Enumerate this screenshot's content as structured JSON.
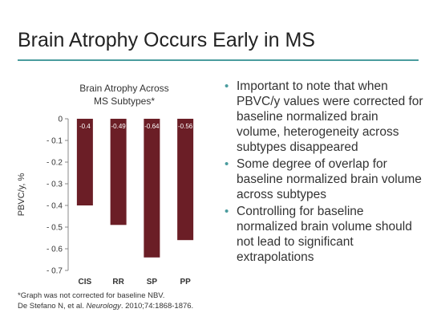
{
  "slide": {
    "title": "Brain Atrophy Occurs Early in MS",
    "accent_color": "#4a9c9e"
  },
  "bullets": [
    "Important to note that when PBVC/y values were corrected for baseline normalized brain volume, heterogeneity across subtypes disappeared",
    "Some degree of overlap for baseline normalized brain volume across subtypes",
    "Controlling for baseline normalized brain volume should not lead to significant extrapolations"
  ],
  "bullet_color": "#4a9c9e",
  "footnote": {
    "line1": "*Graph was not corrected for baseline NBV.",
    "citation_authors": "De Stefano N, et al. ",
    "citation_journal": "Neurology",
    "citation_rest": ". 2010;74:1868-1876."
  },
  "chart_data": {
    "type": "bar",
    "title_line1": "Brain Atrophy Across",
    "title_line2": "MS Subtypes*",
    "ylabel": "PBVC/y, %",
    "xlabel": "",
    "categories": [
      "CIS",
      "RR",
      "SP",
      "PP"
    ],
    "values": [
      -0.4,
      -0.49,
      -0.64,
      -0.56
    ],
    "data_labels": [
      "-0.4",
      "-0.49",
      "-0.64",
      "-0.56"
    ],
    "ylim": [
      -0.7,
      0
    ],
    "yticks": [
      0,
      -0.1,
      -0.2,
      -0.3,
      -0.4,
      -0.5,
      -0.6,
      -0.7
    ],
    "ytick_labels": [
      "0",
      "- 0.1",
      "- 0.2",
      "- 0.3",
      "- 0.4",
      "- 0.5",
      "- 0.6",
      "- 0.7"
    ],
    "bar_color": "#6b1e26",
    "grid": false
  }
}
